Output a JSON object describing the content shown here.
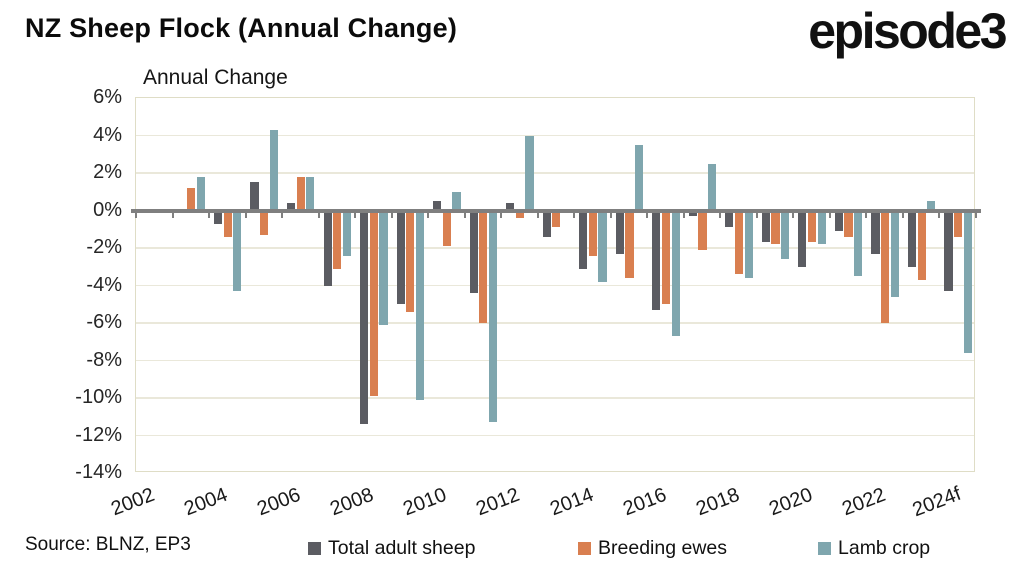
{
  "header": {
    "title": "NZ Sheep Flock (Annual Change)",
    "logo": "episode3"
  },
  "chart_data": {
    "type": "bar",
    "title": "Annual Change",
    "categories": [
      "2002",
      "2003",
      "2004",
      "2005",
      "2006",
      "2007",
      "2008",
      "2009",
      "2010",
      "2011",
      "2012",
      "2013",
      "2014",
      "2015",
      "2016",
      "2017",
      "2018",
      "2019",
      "2020",
      "2021",
      "2022",
      "2023",
      "2024f"
    ],
    "series": [
      {
        "name": "Total adult sheep",
        "color": "#5b5c62",
        "values": [
          0,
          0,
          -0.7,
          1.5,
          0.4,
          -4.0,
          -11.4,
          -5.0,
          0.5,
          -4.4,
          0.4,
          -1.4,
          -3.1,
          -2.3,
          -5.3,
          -0.3,
          -0.9,
          -1.7,
          -3.0,
          -1.1,
          -2.3,
          -3.0,
          -4.3
        ]
      },
      {
        "name": "Breeding ewes",
        "color": "#d97f50",
        "values": [
          0,
          1.2,
          -1.4,
          -1.3,
          1.8,
          -3.1,
          -9.9,
          -5.4,
          -1.9,
          -6.0,
          -0.4,
          -0.9,
          -2.4,
          -3.6,
          -5.0,
          -2.1,
          -3.4,
          -1.8,
          -1.7,
          -1.4,
          -6.0,
          -3.7,
          -1.4
        ]
      },
      {
        "name": "Lamb crop",
        "color": "#7fa6ae",
        "values": [
          0,
          1.8,
          -4.3,
          4.3,
          1.8,
          -2.4,
          -6.1,
          -10.1,
          1.0,
          -11.3,
          4.0,
          0,
          -3.8,
          3.5,
          -6.7,
          2.5,
          -3.6,
          -2.6,
          -1.8,
          -3.5,
          -4.6,
          0.5,
          -7.6
        ]
      }
    ],
    "ylim": [
      -14,
      6
    ],
    "ytick_step": 2,
    "ytick_labels": [
      "6%",
      "4%",
      "2%",
      "0%",
      "-2%",
      "-4%",
      "-6%",
      "-8%",
      "-10%",
      "-12%",
      "-14%"
    ],
    "xtick_labels": [
      "2002",
      "2004",
      "2006",
      "2008",
      "2010",
      "2012",
      "2014",
      "2016",
      "2018",
      "2020",
      "2022",
      "2024f"
    ],
    "grid": true,
    "legend_position": "bottom",
    "axis_color": "#7f7f7f",
    "gridline_color": "#eae8da",
    "plot_border_color": "#dfddc6"
  },
  "footer": {
    "source": "Source: BLNZ, EP3"
  }
}
